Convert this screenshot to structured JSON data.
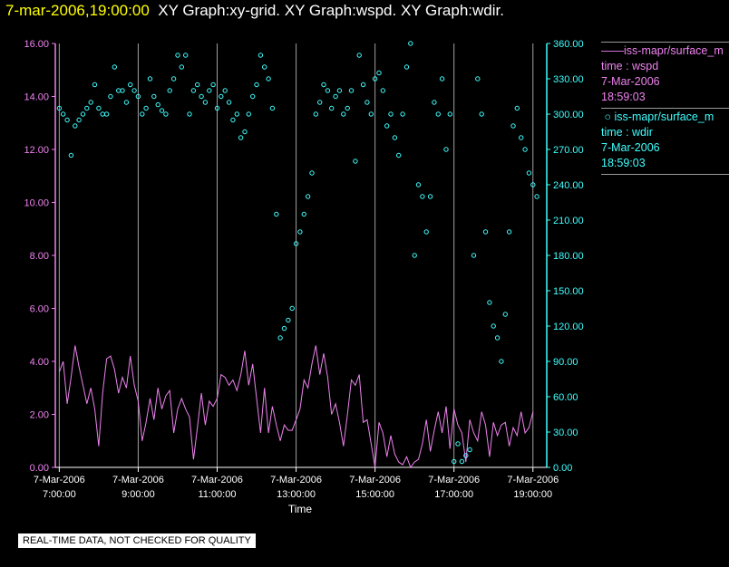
{
  "title": {
    "timestamp": "7-mar-2006,19:00:00",
    "graphs": "XY Graph:xy-grid.  XY Graph:wspd.  XY Graph:wdir."
  },
  "legend": [
    {
      "series_label": "iss-mapr/surface_m",
      "var_label": "time : wspd",
      "date": "7-Mar-2006",
      "time": "18:59:03"
    },
    {
      "series_label": "iss-mapr/surface_m",
      "var_label": "time : wdir",
      "date": "7-Mar-2006",
      "time": "18:59:03"
    }
  ],
  "quality_note": "REAL-TIME DATA, NOT CHECKED FOR QUALITY",
  "colors": {
    "wspd": "#ee82ee",
    "wdir": "#40ffff",
    "grid": "#a0a0a0",
    "axis_text": "#ffffff"
  },
  "chart_data": {
    "type": "line",
    "xlabel": "Time",
    "xlim": [
      6.9,
      19.35
    ],
    "x_ticks": [
      {
        "x": 7,
        "date": "7-Mar-2006",
        "time": "7:00:00"
      },
      {
        "x": 9,
        "date": "7-Mar-2006",
        "time": "9:00:00"
      },
      {
        "x": 11,
        "date": "7-Mar-2006",
        "time": "11:00:00"
      },
      {
        "x": 13,
        "date": "7-Mar-2006",
        "time": "13:00:00"
      },
      {
        "x": 15,
        "date": "7-Mar-2006",
        "time": "15:00:00"
      },
      {
        "x": 17,
        "date": "7-Mar-2006",
        "time": "17:00:00"
      },
      {
        "x": 19,
        "date": "7-Mar-2006",
        "time": "19:00:00"
      }
    ],
    "y_left": {
      "label": "wspd",
      "ylim": [
        0,
        16
      ],
      "ticks": [
        "0.00",
        "2.00",
        "4.00",
        "6.00",
        "8.00",
        "10.00",
        "12.00",
        "14.00",
        "16.00"
      ]
    },
    "y_right": {
      "label": "wdir",
      "ylim": [
        0,
        360
      ],
      "ticks": [
        "0.00",
        "30.00",
        "60.00",
        "90.00",
        "120.00",
        "150.00",
        "180.00",
        "210.00",
        "240.00",
        "270.00",
        "300.00",
        "330.00",
        "360.00"
      ]
    },
    "series": [
      {
        "name": "wspd",
        "style": "line",
        "axis": "left",
        "x": [
          7.0,
          7.1,
          7.2,
          7.3,
          7.4,
          7.5,
          7.6,
          7.7,
          7.8,
          7.9,
          8.0,
          8.1,
          8.2,
          8.3,
          8.4,
          8.5,
          8.6,
          8.7,
          8.8,
          8.9,
          9.0,
          9.1,
          9.2,
          9.3,
          9.4,
          9.5,
          9.6,
          9.7,
          9.8,
          9.9,
          10.0,
          10.1,
          10.2,
          10.3,
          10.4,
          10.5,
          10.6,
          10.7,
          10.8,
          10.9,
          11.0,
          11.1,
          11.2,
          11.3,
          11.4,
          11.5,
          11.6,
          11.7,
          11.8,
          11.9,
          12.0,
          12.1,
          12.2,
          12.3,
          12.4,
          12.5,
          12.6,
          12.7,
          12.8,
          12.9,
          13.0,
          13.1,
          13.2,
          13.3,
          13.4,
          13.5,
          13.6,
          13.7,
          13.8,
          13.9,
          14.0,
          14.1,
          14.2,
          14.3,
          14.4,
          14.5,
          14.6,
          14.7,
          14.8,
          14.9,
          15.0,
          15.1,
          15.2,
          15.3,
          15.4,
          15.5,
          15.6,
          15.7,
          15.8,
          15.9,
          16.0,
          16.1,
          16.2,
          16.3,
          16.4,
          16.5,
          16.6,
          16.7,
          16.8,
          16.9,
          17.0,
          17.1,
          17.2,
          17.3,
          17.4,
          17.5,
          17.6,
          17.7,
          17.8,
          17.9,
          18.0,
          18.1,
          18.2,
          18.3,
          18.4,
          18.5,
          18.6,
          18.7,
          18.8,
          18.9,
          19.0
        ],
        "values": [
          3.6,
          4.0,
          2.4,
          3.4,
          4.6,
          3.8,
          3.1,
          2.4,
          3.0,
          2.2,
          0.8,
          2.8,
          4.1,
          4.2,
          3.7,
          2.8,
          3.4,
          3.0,
          4.2,
          3.1,
          2.5,
          1.0,
          1.7,
          2.6,
          1.8,
          3.0,
          2.2,
          2.7,
          2.9,
          1.3,
          2.2,
          2.6,
          2.2,
          1.9,
          0.3,
          1.5,
          2.8,
          1.6,
          2.5,
          2.3,
          2.6,
          3.5,
          3.4,
          3.1,
          3.3,
          2.9,
          3.5,
          4.4,
          3.1,
          3.9,
          2.6,
          1.3,
          3.0,
          1.3,
          2.3,
          1.6,
          1.0,
          1.6,
          1.4,
          1.4,
          1.8,
          2.2,
          3.3,
          3.0,
          3.9,
          4.6,
          3.5,
          4.3,
          3.4,
          2.0,
          2.4,
          1.7,
          0.8,
          2.0,
          3.3,
          3.1,
          3.5,
          1.7,
          1.8,
          0.9,
          0.0,
          1.7,
          1.3,
          0.4,
          1.2,
          0.5,
          0.2,
          0.1,
          0.4,
          0.0,
          0.2,
          0.3,
          0.9,
          1.8,
          0.6,
          1.4,
          2.1,
          1.3,
          2.3,
          0.7,
          2.2,
          1.6,
          1.3,
          0.2,
          1.8,
          1.3,
          1.0,
          2.1,
          1.6,
          0.4,
          1.7,
          1.2,
          1.6,
          1.7,
          0.8,
          1.5,
          1.2,
          2.1,
          1.3,
          1.5,
          2.1
        ]
      },
      {
        "name": "wdir",
        "style": "scatter",
        "axis": "right",
        "x": [
          7.0,
          7.1,
          7.2,
          7.3,
          7.4,
          7.5,
          7.6,
          7.7,
          7.8,
          7.9,
          8.0,
          8.1,
          8.2,
          8.3,
          8.4,
          8.5,
          8.6,
          8.7,
          8.8,
          8.9,
          9.0,
          9.1,
          9.2,
          9.3,
          9.4,
          9.5,
          9.6,
          9.7,
          9.8,
          9.9,
          10.0,
          10.1,
          10.2,
          10.3,
          10.4,
          10.5,
          10.6,
          10.7,
          10.8,
          10.9,
          11.0,
          11.1,
          11.2,
          11.3,
          11.4,
          11.5,
          11.6,
          11.7,
          11.8,
          11.9,
          12.0,
          12.1,
          12.2,
          12.3,
          12.4,
          12.5,
          12.6,
          12.7,
          12.8,
          12.9,
          13.0,
          13.1,
          13.2,
          13.3,
          13.4,
          13.5,
          13.6,
          13.7,
          13.8,
          13.9,
          14.0,
          14.1,
          14.2,
          14.3,
          14.4,
          14.5,
          14.6,
          14.7,
          14.8,
          14.9,
          15.0,
          15.1,
          15.2,
          15.3,
          15.4,
          15.5,
          15.6,
          15.7,
          15.8,
          15.9,
          16.0,
          16.1,
          16.2,
          16.3,
          16.4,
          16.5,
          16.6,
          16.7,
          16.8,
          16.9,
          17.0,
          17.1,
          17.2,
          17.3,
          17.4,
          17.5,
          17.6,
          17.7,
          17.8,
          17.9,
          18.0,
          18.1,
          18.2,
          18.3,
          18.4,
          18.5,
          18.6,
          18.7,
          18.8,
          18.9,
          19.0,
          19.1
        ],
        "values": [
          305,
          300,
          295,
          265,
          290,
          295,
          300,
          305,
          310,
          325,
          305,
          300,
          300,
          315,
          340,
          320,
          320,
          310,
          325,
          320,
          315,
          300,
          305,
          330,
          315,
          308,
          303,
          300,
          320,
          330,
          350,
          340,
          350,
          300,
          320,
          325,
          315,
          310,
          320,
          325,
          305,
          315,
          320,
          310,
          295,
          300,
          280,
          285,
          300,
          315,
          325,
          350,
          340,
          330,
          305,
          215,
          110,
          118,
          125,
          135,
          190,
          200,
          215,
          230,
          250,
          300,
          310,
          325,
          320,
          305,
          315,
          320,
          300,
          305,
          320,
          260,
          350,
          325,
          310,
          300,
          330,
          335,
          320,
          290,
          300,
          280,
          265,
          300,
          340,
          360,
          180,
          240,
          230,
          200,
          230,
          310,
          300,
          330,
          270,
          300,
          5,
          20,
          5,
          10,
          15,
          180,
          330,
          300,
          200,
          140,
          120,
          110,
          90,
          130,
          200,
          290,
          305,
          280,
          270,
          250,
          240,
          230
        ]
      }
    ]
  }
}
